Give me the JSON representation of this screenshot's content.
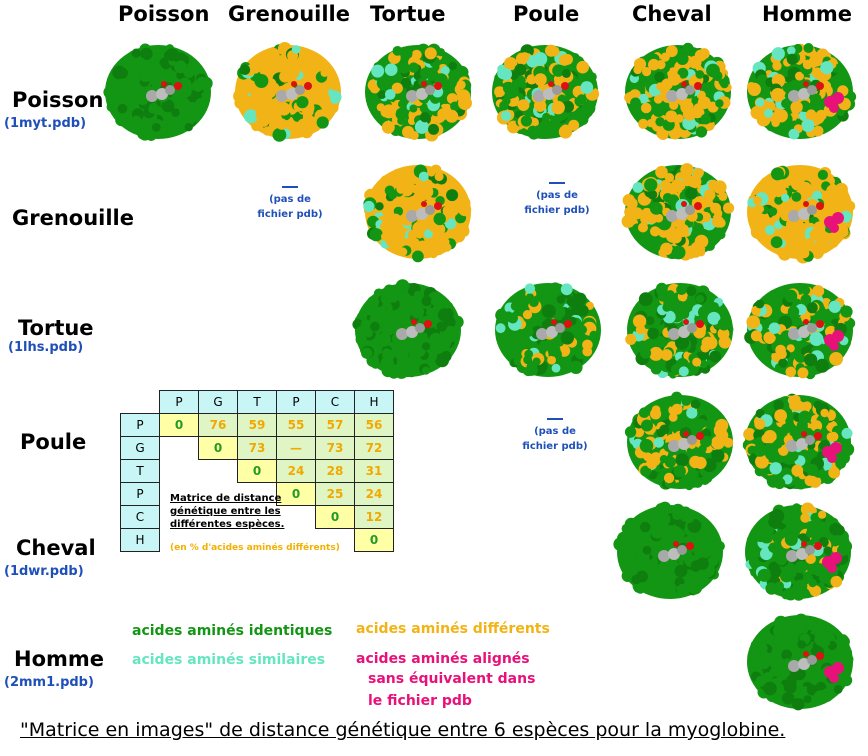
{
  "columns": [
    "Poisson",
    "Grenouille",
    "Tortue",
    "Poule",
    "Cheval",
    "Homme"
  ],
  "rows": [
    {
      "name": "Poisson",
      "pdb": "(1myt.pdb)"
    },
    {
      "name": "Grenouille",
      "pdb": ""
    },
    {
      "name": "Tortue",
      "pdb": "(1lhs.pdb)"
    },
    {
      "name": "Poule",
      "pdb": ""
    },
    {
      "name": "Cheval",
      "pdb": "(1dwr.pdb)"
    },
    {
      "name": "Homme",
      "pdb": "(2mm1.pdb)"
    }
  ],
  "no_pdb": {
    "line1": "(pas de",
    "line2": "fichier pdb)"
  },
  "matrix": {
    "headers": [
      "P",
      "G",
      "T",
      "P",
      "C",
      "H"
    ],
    "values": [
      [
        "0",
        "76",
        "59",
        "55",
        "57",
        "56"
      ],
      [
        "",
        "0",
        "73",
        "—",
        "73",
        "72"
      ],
      [
        "",
        "",
        "0",
        "24",
        "28",
        "31"
      ],
      [
        "",
        "",
        "",
        "0",
        "25",
        "24"
      ],
      [
        "",
        "",
        "",
        "",
        "0",
        "12"
      ],
      [
        "",
        "",
        "",
        "",
        "",
        "0"
      ]
    ],
    "note_line1": "Matrice de distance",
    "note_line2": "génétique entre les",
    "note_line3": "différentes espèces.",
    "unit": "(en % d'acides aminés différents)"
  },
  "legend": {
    "identical": "acides aminés identiques",
    "similar": "acides aminés similaires",
    "different": "acides aminés différents",
    "aligned_line1": "acides aminés alignés",
    "aligned_line2": "sans équivalent dans",
    "aligned_line3": "le fichier pdb"
  },
  "colors": {
    "identical": "#139613",
    "similar": "#66e6c0",
    "different": "#f2b316",
    "aligned": "#e8117a",
    "pdb_label": "#1f4fb8"
  },
  "caption": "\"Matrice en images\" de distance génétique entre 6  espèces pour la myoglobine."
}
